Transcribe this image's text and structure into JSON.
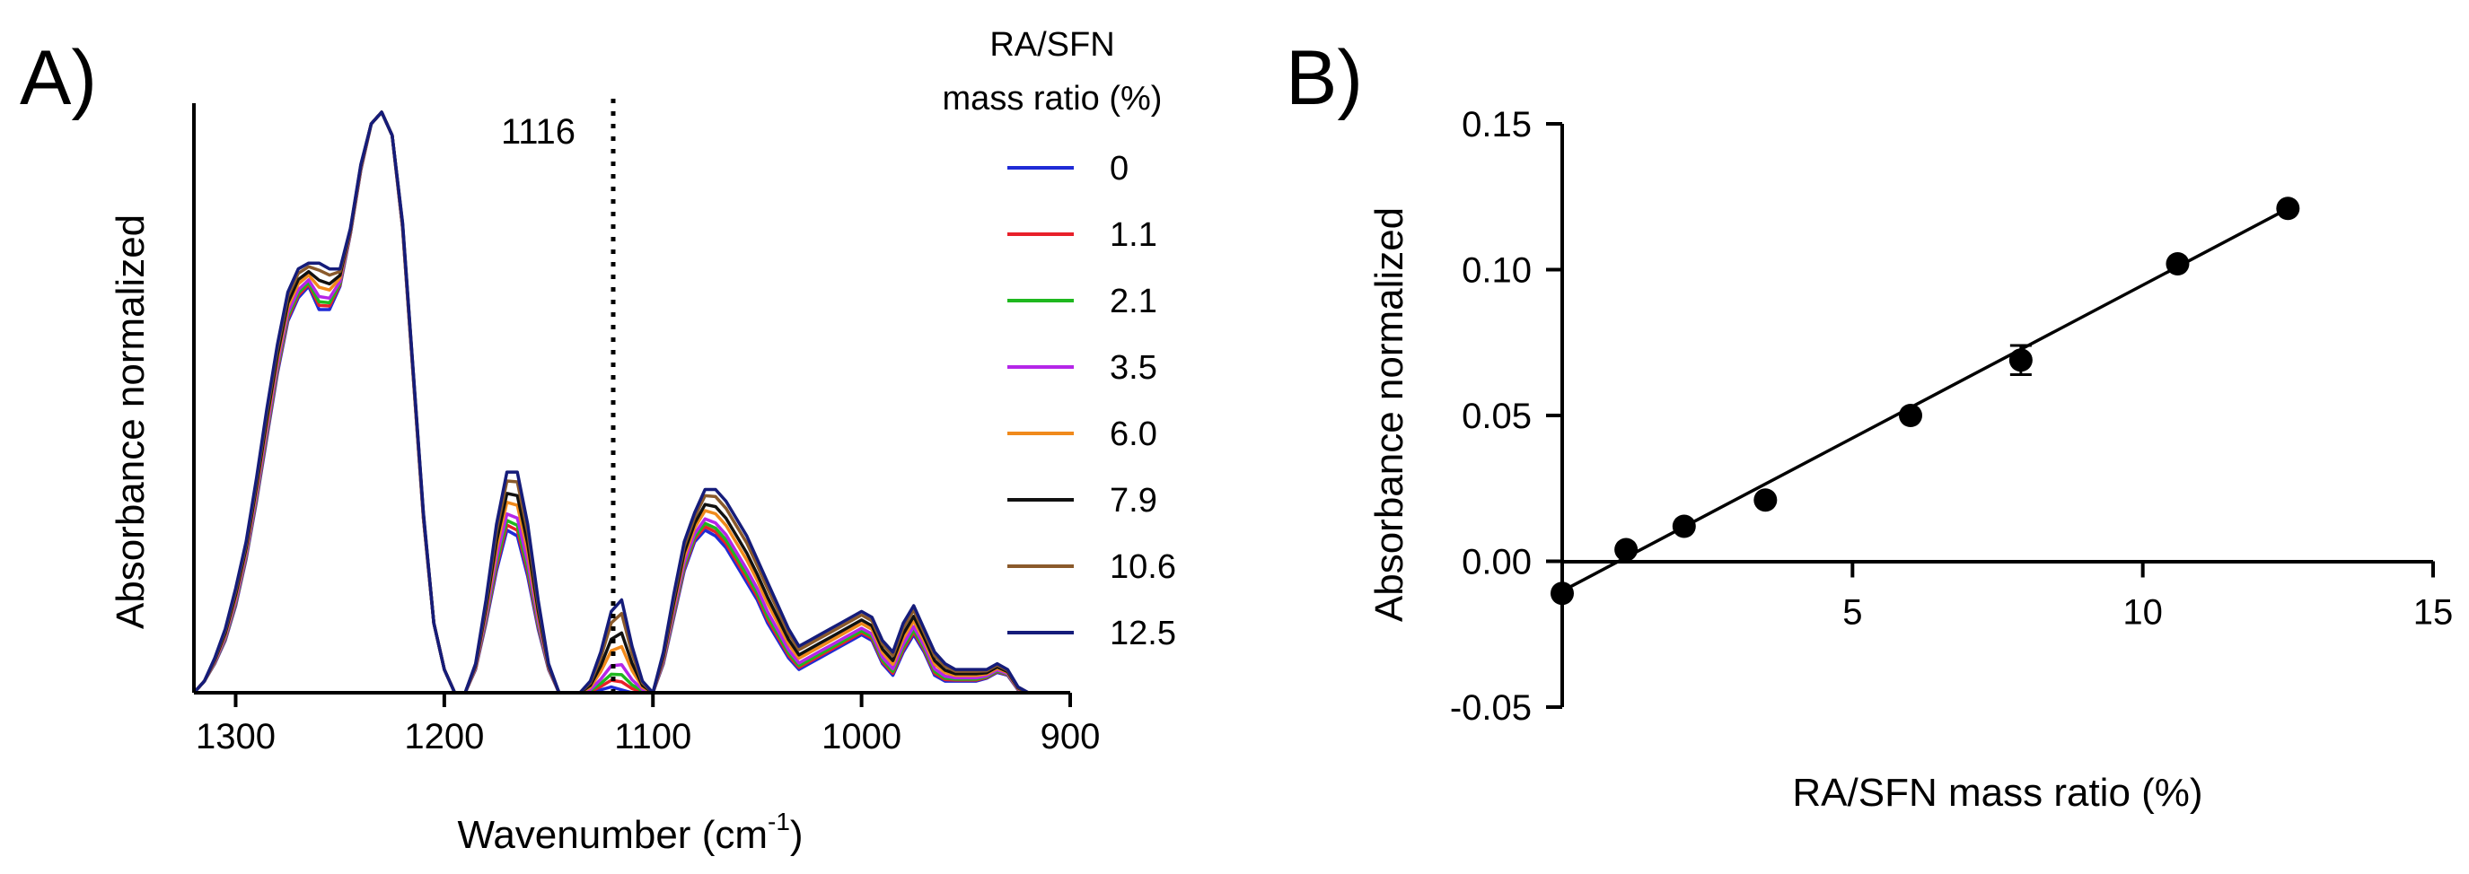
{
  "figure": {
    "panel_a_label": "A)",
    "panel_b_label": "B)"
  },
  "chart_data": [
    {
      "type": "line",
      "panel": "A)",
      "title": "",
      "xlabel": "Wavenumber (cm",
      "xlabel_superscript": "-1",
      "xlabel_suffix": ")",
      "ylabel": "Absorbance normalized",
      "xlim": [
        1320,
        900
      ],
      "x_reversed": true,
      "ylim": [
        0,
        1
      ],
      "x_ticks": [
        1300,
        1200,
        1100,
        1000,
        900
      ],
      "x_tick_labels": [
        "1300",
        "1200",
        "1100",
        "1000",
        "900"
      ],
      "y_ticks_shown": false,
      "grid": false,
      "annotation": {
        "text": "1116",
        "x": 1116,
        "style": "dotted vertical line"
      },
      "legend": {
        "title_line1": "RA/SFN",
        "title_line2": "mass ratio (%)",
        "placement": "right"
      },
      "series": [
        {
          "name": "0",
          "ratio": 0,
          "color": "#1f2bd6"
        },
        {
          "name": "1.1",
          "ratio": 1.1,
          "color": "#e8202a"
        },
        {
          "name": "2.1",
          "ratio": 2.1,
          "color": "#1fb81f"
        },
        {
          "name": "3.5",
          "ratio": 3.5,
          "color": "#b526e8"
        },
        {
          "name": "6.0",
          "ratio": 6.0,
          "color": "#f08a1c"
        },
        {
          "name": "7.9",
          "ratio": 7.9,
          "color": "#111111"
        },
        {
          "name": "10.6",
          "ratio": 10.6,
          "color": "#8a5a2b"
        },
        {
          "name": "12.5",
          "ratio": 12.5,
          "color": "#151c7a"
        }
      ],
      "x": [
        1320,
        1315,
        1310,
        1305,
        1300,
        1295,
        1290,
        1285,
        1280,
        1275,
        1270,
        1265,
        1260,
        1255,
        1250,
        1245,
        1240,
        1235,
        1230,
        1225,
        1220,
        1215,
        1210,
        1205,
        1200,
        1195,
        1190,
        1185,
        1180,
        1175,
        1170,
        1165,
        1160,
        1155,
        1150,
        1145,
        1140,
        1135,
        1130,
        1125,
        1120,
        1115,
        1110,
        1105,
        1100,
        1095,
        1090,
        1085,
        1080,
        1075,
        1070,
        1065,
        1060,
        1055,
        1050,
        1045,
        1040,
        1035,
        1030,
        1025,
        1020,
        1015,
        1010,
        1005,
        1000,
        995,
        990,
        985,
        980,
        975,
        970,
        965,
        960,
        955,
        950,
        945,
        940,
        935,
        930,
        925,
        920
      ],
      "y_series_0": [
        0.0,
        0.02,
        0.05,
        0.09,
        0.15,
        0.23,
        0.33,
        0.44,
        0.55,
        0.64,
        0.68,
        0.7,
        0.66,
        0.66,
        0.7,
        0.79,
        0.9,
        0.98,
        1.0,
        0.96,
        0.8,
        0.55,
        0.3,
        0.12,
        0.04,
        0.0,
        0.0,
        0.04,
        0.12,
        0.21,
        0.28,
        0.27,
        0.2,
        0.11,
        0.04,
        0.0,
        0.0,
        0.0,
        0.0,
        0.005,
        0.01,
        0.005,
        0.0,
        0.0,
        0.0,
        0.05,
        0.13,
        0.21,
        0.26,
        0.28,
        0.27,
        0.25,
        0.22,
        0.19,
        0.16,
        0.12,
        0.09,
        0.06,
        0.04,
        0.05,
        0.06,
        0.07,
        0.08,
        0.09,
        0.1,
        0.09,
        0.05,
        0.03,
        0.07,
        0.1,
        0.07,
        0.03,
        0.02,
        0.02,
        0.02,
        0.02,
        0.025,
        0.035,
        0.03,
        0.005,
        0.0
      ],
      "y_series_12_5": [
        0.0,
        0.02,
        0.06,
        0.11,
        0.18,
        0.26,
        0.37,
        0.49,
        0.6,
        0.69,
        0.73,
        0.74,
        0.74,
        0.73,
        0.73,
        0.8,
        0.91,
        0.98,
        1.0,
        0.96,
        0.81,
        0.56,
        0.31,
        0.12,
        0.04,
        0.0,
        0.0,
        0.05,
        0.16,
        0.29,
        0.38,
        0.38,
        0.29,
        0.16,
        0.05,
        0.0,
        0.0,
        0.0,
        0.02,
        0.07,
        0.14,
        0.16,
        0.08,
        0.02,
        0.0,
        0.07,
        0.17,
        0.26,
        0.31,
        0.35,
        0.35,
        0.33,
        0.3,
        0.27,
        0.23,
        0.19,
        0.15,
        0.11,
        0.08,
        0.09,
        0.1,
        0.11,
        0.12,
        0.13,
        0.14,
        0.13,
        0.09,
        0.07,
        0.12,
        0.15,
        0.11,
        0.07,
        0.05,
        0.04,
        0.04,
        0.04,
        0.04,
        0.05,
        0.04,
        0.01,
        0.0
      ]
    },
    {
      "type": "scatter",
      "panel": "B)",
      "title": "",
      "xlabel": "RA/SFN mass ratio (%)",
      "ylabel": "Absorbance normalized",
      "xlim": [
        0,
        15
      ],
      "ylim": [
        -0.05,
        0.15
      ],
      "x_ticks": [
        5,
        10,
        15
      ],
      "x_tick_labels": [
        "5",
        "10",
        "15"
      ],
      "y_ticks": [
        -0.05,
        0.0,
        0.05,
        0.1,
        0.15
      ],
      "y_tick_labels": [
        "-0.05",
        "0.00",
        "0.05",
        "0.10",
        "0.15"
      ],
      "grid": false,
      "points": [
        {
          "x": 0.0,
          "y": -0.011,
          "err": 0.0
        },
        {
          "x": 1.1,
          "y": 0.004,
          "err": 0.0
        },
        {
          "x": 2.1,
          "y": 0.012,
          "err": 0.0
        },
        {
          "x": 3.5,
          "y": 0.021,
          "err": 0.0
        },
        {
          "x": 6.0,
          "y": 0.05,
          "err": 0.0
        },
        {
          "x": 7.9,
          "y": 0.069,
          "err": 0.005
        },
        {
          "x": 10.6,
          "y": 0.102,
          "err": 0.0
        },
        {
          "x": 12.5,
          "y": 0.121,
          "err": 0.0
        }
      ],
      "fit_line": {
        "x_start": 0.0,
        "x_end": 12.5,
        "slope": 0.01049,
        "intercept": -0.0102
      }
    }
  ]
}
